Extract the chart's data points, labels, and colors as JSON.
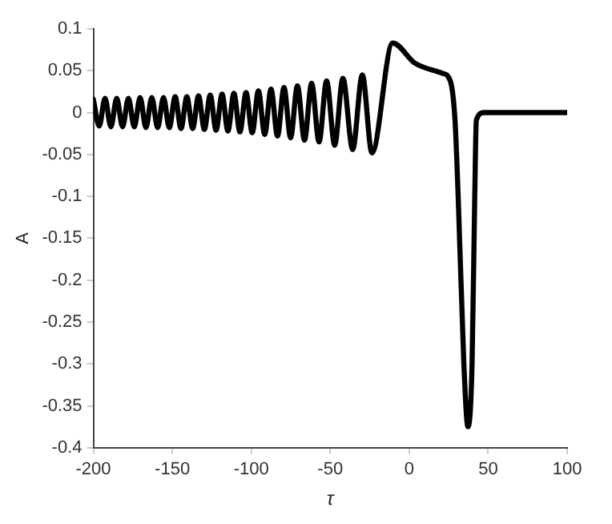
{
  "chart_data": {
    "type": "line",
    "xlabel": "τ",
    "ylabel": "A",
    "xlim": [
      -200,
      100
    ],
    "ylim": [
      -0.4,
      0.1
    ],
    "xticks": [
      -200,
      -150,
      -100,
      -50,
      0,
      50,
      100
    ],
    "yticks": [
      -0.4,
      -0.35,
      -0.3,
      -0.25,
      -0.2,
      -0.15,
      -0.1,
      -0.05,
      0,
      0.05,
      0.1
    ],
    "grid": false,
    "legend": false,
    "marker": "none",
    "line_style": "solid",
    "series": [
      {
        "color": "#000000",
        "x": [
          -200,
          -196.3,
          -192.6,
          -188.9,
          -185.2,
          -181.5,
          -177.8,
          -174.1,
          -170.4,
          -166.7,
          -163,
          -159.3,
          -155.6,
          -151.9,
          -148.2,
          -144.5,
          -140.8,
          -137.1,
          -133.4,
          -129.7,
          -126,
          -122.3,
          -118.5,
          -114.8,
          -111,
          -107.2,
          -103.3,
          -99.4,
          -95.5,
          -91.5,
          -87.5,
          -83.4,
          -79.3,
          -75.1,
          -70.8,
          -66.3,
          -61.8,
          -57.1,
          -52.3,
          -47.2,
          -42,
          -35.8,
          -29.7,
          -23.6,
          -10.5,
          3.7,
          21,
          26,
          29,
          31,
          34.6,
          37.2,
          39.8,
          41.5,
          42.5,
          47.3,
          100
        ],
        "values": [
          0.016,
          -0.016,
          0.017,
          -0.017,
          0.017,
          -0.017,
          0.017,
          -0.017,
          0.018,
          -0.018,
          0.018,
          -0.018,
          0.018,
          -0.018,
          0.019,
          -0.019,
          0.019,
          -0.019,
          0.02,
          -0.02,
          0.021,
          -0.021,
          0.022,
          -0.022,
          0.023,
          -0.023,
          0.024,
          -0.024,
          0.026,
          -0.026,
          0.028,
          -0.028,
          0.03,
          -0.03,
          0.032,
          -0.033,
          0.035,
          -0.035,
          0.038,
          -0.039,
          0.041,
          -0.044,
          0.045,
          -0.048,
          0.083,
          0.059,
          0.047,
          0.038,
          -0.009,
          -0.1,
          -0.3,
          -0.375,
          -0.3,
          -0.1,
          -0.009,
          0,
          0
        ]
      }
    ]
  }
}
